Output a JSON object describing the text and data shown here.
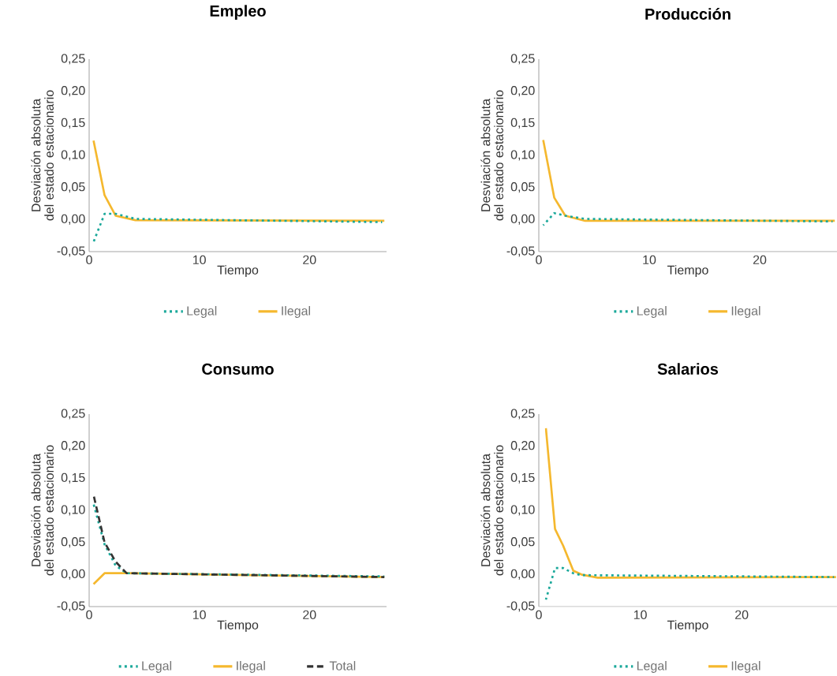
{
  "chart_data": [
    {
      "type": "line",
      "title": "Empleo",
      "xlabel": "Tiempo",
      "ylabel": "Desviación absoluta del estado estacionario",
      "xlim": [
        0,
        27
      ],
      "ylim": [
        -0.05,
        0.25
      ],
      "xticks": [
        0,
        10,
        20
      ],
      "yticks": [
        {
          "value": -0.05,
          "label": "-0,05"
        },
        {
          "value": 0,
          "label": "0,00"
        },
        {
          "value": 0.05,
          "label": "0,05"
        },
        {
          "value": 0.1,
          "label": "0,10"
        },
        {
          "value": 0.15,
          "label": "0,15"
        },
        {
          "value": 0.2,
          "label": "0,20"
        },
        {
          "value": 0.25,
          "label": "0,25"
        }
      ],
      "grid": false,
      "legend": "bottom",
      "series": [
        {
          "name": "Legal",
          "color": "#1aa89a",
          "line_style": "dotted",
          "x": [
            0.4,
            1.4,
            2.4,
            4.2,
            26.6
          ],
          "values": [
            -0.035,
            0.009,
            0.009,
            0.001,
            -0.004
          ]
        },
        {
          "name": "Ilegal",
          "color": "#f5b82e",
          "line_style": "solid",
          "x": [
            0.4,
            1.4,
            2.4,
            4.2,
            26.8
          ],
          "values": [
            0.123,
            0.038,
            0.006,
            -0.001,
            -0.002
          ]
        }
      ]
    },
    {
      "type": "line",
      "title": "Producción",
      "xlabel": "Tiempo",
      "ylabel": "Desviación absoluta del estado estacionario",
      "xlim": [
        0,
        27
      ],
      "ylim": [
        -0.05,
        0.25
      ],
      "xticks": [
        0,
        10,
        20
      ],
      "yticks": [
        {
          "value": -0.05,
          "label": "-0,05"
        },
        {
          "value": 0,
          "label": "0,00"
        },
        {
          "value": 0.05,
          "label": "0,05"
        },
        {
          "value": 0.1,
          "label": "0,10"
        },
        {
          "value": 0.15,
          "label": "0,15"
        },
        {
          "value": 0.2,
          "label": "0,20"
        },
        {
          "value": 0.25,
          "label": "0,25"
        }
      ],
      "grid": false,
      "legend": "bottom",
      "series": [
        {
          "name": "Legal",
          "color": "#1aa89a",
          "line_style": "dotted",
          "x": [
            0.4,
            1.4,
            2.4,
            4.2,
            26.6
          ],
          "values": [
            -0.009,
            0.01,
            0.006,
            0.001,
            -0.003
          ]
        },
        {
          "name": "Ilegal",
          "color": "#f5b82e",
          "line_style": "solid",
          "x": [
            0.4,
            1.4,
            2.4,
            4.2,
            26.8
          ],
          "values": [
            0.124,
            0.034,
            0.006,
            -0.002,
            -0.002
          ]
        }
      ]
    },
    {
      "type": "line",
      "title": "Consumo",
      "xlabel": "Tiempo",
      "ylabel": "Desviación absoluta del estado estacionario",
      "xlim": [
        0,
        27
      ],
      "ylim": [
        -0.05,
        0.25
      ],
      "xticks": [
        0,
        10,
        20
      ],
      "yticks": [
        {
          "value": -0.05,
          "label": "-0,05"
        },
        {
          "value": 0,
          "label": "0,00"
        },
        {
          "value": 0.05,
          "label": "0,05"
        },
        {
          "value": 0.1,
          "label": "0,10"
        },
        {
          "value": 0.15,
          "label": "0,15"
        },
        {
          "value": 0.2,
          "label": "0,20"
        },
        {
          "value": 0.25,
          "label": "0,25"
        }
      ],
      "grid": false,
      "legend": "bottom",
      "series": [
        {
          "name": "Legal",
          "color": "#1aa89a",
          "line_style": "dotted",
          "x": [
            0.4,
            1.4,
            2.4,
            3.4,
            26.8
          ],
          "values": [
            0.11,
            0.047,
            0.014,
            0.002,
            -0.003
          ]
        },
        {
          "name": "Ilegal",
          "color": "#f5b82e",
          "line_style": "solid",
          "x": [
            0.4,
            1.4,
            3.4,
            26.8
          ],
          "values": [
            -0.015,
            0.002,
            0.002,
            -0.004
          ]
        },
        {
          "name": "Total",
          "color": "#333333",
          "line_style": "dashed",
          "x": [
            0.4,
            1.4,
            2.4,
            3.4,
            26.8
          ],
          "values": [
            0.124,
            0.05,
            0.02,
            0.002,
            -0.004
          ]
        }
      ]
    },
    {
      "type": "line",
      "title": "Salarios",
      "xlabel": "Tiempo",
      "ylabel": "Desviación absoluta del estado estacionario",
      "xlim": [
        0,
        29.4
      ],
      "ylim": [
        -0.05,
        0.25
      ],
      "xticks": [
        0,
        10,
        20
      ],
      "yticks": [
        {
          "value": -0.05,
          "label": "-0,05"
        },
        {
          "value": 0,
          "label": "0,00"
        },
        {
          "value": 0.05,
          "label": "0,05"
        },
        {
          "value": 0.1,
          "label": "0,10"
        },
        {
          "value": 0.15,
          "label": "0,15"
        },
        {
          "value": 0.2,
          "label": "0,20"
        },
        {
          "value": 0.25,
          "label": "0,25"
        }
      ],
      "grid": false,
      "legend": "bottom",
      "series": [
        {
          "name": "Legal",
          "color": "#1aa89a",
          "line_style": "dotted",
          "x": [
            0.7,
            1.6,
            2.4,
            3.4,
            4.2,
            29.1
          ],
          "values": [
            -0.039,
            0.01,
            0.01,
            0.002,
            -0.001,
            -0.004
          ]
        },
        {
          "name": "Ilegal",
          "color": "#f5b82e",
          "line_style": "solid",
          "x": [
            0.7,
            1.6,
            2.4,
            3.4,
            4.2,
            5.8,
            29.3
          ],
          "values": [
            0.228,
            0.071,
            0.045,
            0.006,
            0.0,
            -0.005,
            -0.004
          ]
        }
      ]
    }
  ]
}
